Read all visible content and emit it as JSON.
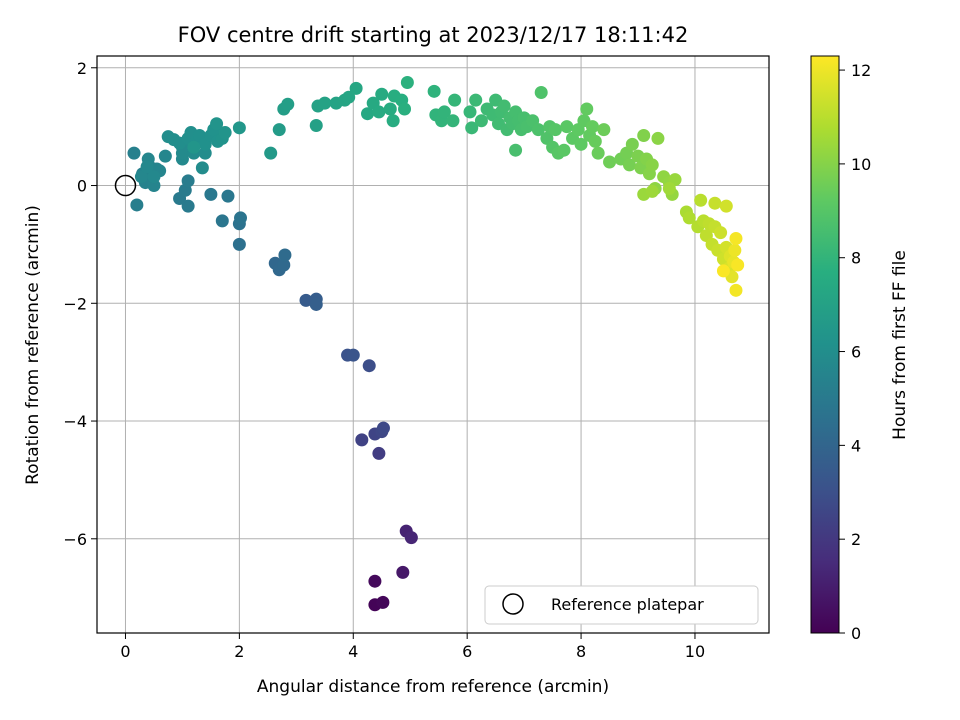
{
  "chart_data": {
    "type": "scatter",
    "title": "FOV centre drift starting at 2023/12/17 18:11:42",
    "xlabel": "Angular distance from reference (arcmin)",
    "ylabel": "Rotation from reference (arcmin)",
    "xlim": [
      -0.5,
      11.3
    ],
    "ylim": [
      -7.6,
      2.2
    ],
    "x_ticks": [
      0,
      2,
      4,
      6,
      8,
      10
    ],
    "y_ticks": [
      -6,
      -4,
      -2,
      0,
      2
    ],
    "grid": true,
    "legend_position": "lower-right",
    "colorbar": {
      "label": "Hours from first FF file",
      "range": [
        0,
        12.3
      ],
      "ticks": [
        0,
        2,
        4,
        6,
        8,
        10,
        12
      ],
      "colormap": "viridis"
    },
    "reference": {
      "label": "Reference platepar",
      "x": 0,
      "y": 0
    },
    "points": [
      {
        "x": 4.38,
        "y": -7.12,
        "t": 0.1
      },
      {
        "x": 4.52,
        "y": -7.08,
        "t": 0.2
      },
      {
        "x": 4.38,
        "y": -6.72,
        "t": 0.3
      },
      {
        "x": 4.87,
        "y": -6.57,
        "t": 0.8
      },
      {
        "x": 4.93,
        "y": -5.87,
        "t": 1.2
      },
      {
        "x": 5.02,
        "y": -5.98,
        "t": 1.3
      },
      {
        "x": 4.45,
        "y": -4.55,
        "t": 2.2
      },
      {
        "x": 4.15,
        "y": -4.32,
        "t": 2.4
      },
      {
        "x": 4.38,
        "y": -4.22,
        "t": 2.5
      },
      {
        "x": 4.5,
        "y": -4.18,
        "t": 2.6
      },
      {
        "x": 4.53,
        "y": -4.12,
        "t": 2.7
      },
      {
        "x": 4.28,
        "y": -3.06,
        "t": 2.9
      },
      {
        "x": 3.9,
        "y": -2.88,
        "t": 3.1
      },
      {
        "x": 4.0,
        "y": -2.88,
        "t": 3.2
      },
      {
        "x": 3.17,
        "y": -1.95,
        "t": 3.5
      },
      {
        "x": 3.35,
        "y": -1.93,
        "t": 3.6
      },
      {
        "x": 3.35,
        "y": -2.02,
        "t": 3.7
      },
      {
        "x": 2.63,
        "y": -1.32,
        "t": 4.1
      },
      {
        "x": 2.7,
        "y": -1.43,
        "t": 4.15
      },
      {
        "x": 2.78,
        "y": -1.35,
        "t": 4.2
      },
      {
        "x": 2.8,
        "y": -1.18,
        "t": 4.3
      },
      {
        "x": 2.0,
        "y": -1.0,
        "t": 4.5
      },
      {
        "x": 2.0,
        "y": -0.65,
        "t": 4.6
      },
      {
        "x": 2.02,
        "y": -0.55,
        "t": 4.7
      },
      {
        "x": 1.7,
        "y": -0.6,
        "t": 4.8
      },
      {
        "x": 1.8,
        "y": -0.18,
        "t": 4.85
      },
      {
        "x": 1.5,
        "y": -0.15,
        "t": 4.9
      },
      {
        "x": 1.1,
        "y": -0.35,
        "t": 5.0
      },
      {
        "x": 0.95,
        "y": -0.22,
        "t": 5.0
      },
      {
        "x": 1.05,
        "y": -0.08,
        "t": 5.05
      },
      {
        "x": 1.1,
        "y": 0.08,
        "t": 5.1
      },
      {
        "x": 0.2,
        "y": -0.33,
        "t": 5.2
      },
      {
        "x": 0.15,
        "y": 0.55,
        "t": 5.3
      },
      {
        "x": 0.3,
        "y": 0.2,
        "t": 5.3
      },
      {
        "x": 0.35,
        "y": 0.05,
        "t": 5.4
      },
      {
        "x": 0.42,
        "y": 0.1,
        "t": 5.4
      },
      {
        "x": 0.45,
        "y": 0.3,
        "t": 5.45
      },
      {
        "x": 0.5,
        "y": 0.0,
        "t": 5.5
      },
      {
        "x": 0.55,
        "y": 0.28,
        "t": 5.5
      },
      {
        "x": 0.6,
        "y": 0.25,
        "t": 5.55
      },
      {
        "x": 0.4,
        "y": 0.45,
        "t": 5.6
      },
      {
        "x": 0.7,
        "y": 0.5,
        "t": 5.6
      },
      {
        "x": 0.28,
        "y": 0.15,
        "t": 5.65
      },
      {
        "x": 0.5,
        "y": 0.15,
        "t": 5.7
      },
      {
        "x": 0.38,
        "y": 0.32,
        "t": 5.7
      },
      {
        "x": 1.0,
        "y": 0.45,
        "t": 5.75
      },
      {
        "x": 1.0,
        "y": 0.55,
        "t": 5.8
      },
      {
        "x": 1.0,
        "y": 0.65,
        "t": 5.8
      },
      {
        "x": 1.2,
        "y": 0.55,
        "t": 5.85
      },
      {
        "x": 1.35,
        "y": 0.3,
        "t": 5.9
      },
      {
        "x": 1.4,
        "y": 0.55,
        "t": 5.9
      },
      {
        "x": 0.75,
        "y": 0.83,
        "t": 5.95
      },
      {
        "x": 0.85,
        "y": 0.78,
        "t": 6.0
      },
      {
        "x": 0.95,
        "y": 0.72,
        "t": 6.0
      },
      {
        "x": 1.1,
        "y": 0.8,
        "t": 6.05
      },
      {
        "x": 1.15,
        "y": 0.9,
        "t": 6.05
      },
      {
        "x": 1.25,
        "y": 0.75,
        "t": 6.1
      },
      {
        "x": 1.3,
        "y": 0.85,
        "t": 6.1
      },
      {
        "x": 1.4,
        "y": 0.7,
        "t": 6.15
      },
      {
        "x": 1.5,
        "y": 0.85,
        "t": 6.15
      },
      {
        "x": 1.55,
        "y": 0.95,
        "t": 6.2
      },
      {
        "x": 1.62,
        "y": 0.75,
        "t": 6.2
      },
      {
        "x": 1.7,
        "y": 0.8,
        "t": 6.25
      },
      {
        "x": 1.75,
        "y": 0.9,
        "t": 6.3
      },
      {
        "x": 1.6,
        "y": 1.05,
        "t": 6.3
      },
      {
        "x": 1.2,
        "y": 0.65,
        "t": 6.35
      },
      {
        "x": 2.0,
        "y": 0.98,
        "t": 6.45
      },
      {
        "x": 2.55,
        "y": 0.55,
        "t": 6.6
      },
      {
        "x": 2.7,
        "y": 0.95,
        "t": 6.7
      },
      {
        "x": 2.78,
        "y": 1.3,
        "t": 6.8
      },
      {
        "x": 2.85,
        "y": 1.38,
        "t": 6.85
      },
      {
        "x": 3.35,
        "y": 1.02,
        "t": 6.95
      },
      {
        "x": 3.38,
        "y": 1.35,
        "t": 7.0
      },
      {
        "x": 3.5,
        "y": 1.4,
        "t": 7.05
      },
      {
        "x": 3.7,
        "y": 1.4,
        "t": 7.1
      },
      {
        "x": 3.85,
        "y": 1.45,
        "t": 7.15
      },
      {
        "x": 3.92,
        "y": 1.5,
        "t": 7.2
      },
      {
        "x": 4.05,
        "y": 1.65,
        "t": 7.25
      },
      {
        "x": 4.25,
        "y": 1.22,
        "t": 7.35
      },
      {
        "x": 4.35,
        "y": 1.4,
        "t": 7.4
      },
      {
        "x": 4.45,
        "y": 1.25,
        "t": 7.45
      },
      {
        "x": 4.5,
        "y": 1.55,
        "t": 7.5
      },
      {
        "x": 4.65,
        "y": 1.3,
        "t": 7.55
      },
      {
        "x": 4.7,
        "y": 1.1,
        "t": 7.6
      },
      {
        "x": 4.72,
        "y": 1.52,
        "t": 7.65
      },
      {
        "x": 4.85,
        "y": 1.45,
        "t": 7.7
      },
      {
        "x": 4.9,
        "y": 1.3,
        "t": 7.75
      },
      {
        "x": 4.95,
        "y": 1.75,
        "t": 7.8
      },
      {
        "x": 5.42,
        "y": 1.6,
        "t": 7.9
      },
      {
        "x": 5.45,
        "y": 1.2,
        "t": 7.95
      },
      {
        "x": 5.55,
        "y": 1.1,
        "t": 8.0
      },
      {
        "x": 5.6,
        "y": 1.25,
        "t": 8.0
      },
      {
        "x": 5.75,
        "y": 1.1,
        "t": 8.05
      },
      {
        "x": 5.78,
        "y": 1.45,
        "t": 8.1
      },
      {
        "x": 6.05,
        "y": 1.25,
        "t": 8.15
      },
      {
        "x": 6.08,
        "y": 0.98,
        "t": 8.2
      },
      {
        "x": 6.15,
        "y": 1.45,
        "t": 8.25
      },
      {
        "x": 6.25,
        "y": 1.1,
        "t": 8.3
      },
      {
        "x": 6.35,
        "y": 1.3,
        "t": 8.3
      },
      {
        "x": 6.45,
        "y": 1.2,
        "t": 8.35
      },
      {
        "x": 6.5,
        "y": 1.45,
        "t": 8.35
      },
      {
        "x": 6.55,
        "y": 1.05,
        "t": 8.4
      },
      {
        "x": 6.6,
        "y": 1.25,
        "t": 8.4
      },
      {
        "x": 6.65,
        "y": 1.35,
        "t": 8.45
      },
      {
        "x": 6.7,
        "y": 0.95,
        "t": 8.45
      },
      {
        "x": 6.75,
        "y": 1.15,
        "t": 8.5
      },
      {
        "x": 6.8,
        "y": 1.05,
        "t": 8.5
      },
      {
        "x": 6.85,
        "y": 1.25,
        "t": 8.55
      },
      {
        "x": 6.9,
        "y": 1.1,
        "t": 8.55
      },
      {
        "x": 6.95,
        "y": 0.95,
        "t": 8.6
      },
      {
        "x": 7.0,
        "y": 1.15,
        "t": 8.6
      },
      {
        "x": 6.85,
        "y": 0.6,
        "t": 8.62
      },
      {
        "x": 7.05,
        "y": 1.0,
        "t": 8.65
      },
      {
        "x": 7.15,
        "y": 1.1,
        "t": 8.7
      },
      {
        "x": 7.25,
        "y": 0.95,
        "t": 8.75
      },
      {
        "x": 7.3,
        "y": 1.58,
        "t": 8.8
      },
      {
        "x": 7.4,
        "y": 0.8,
        "t": 8.85
      },
      {
        "x": 7.45,
        "y": 1.0,
        "t": 8.9
      },
      {
        "x": 7.5,
        "y": 0.65,
        "t": 8.95
      },
      {
        "x": 7.55,
        "y": 0.95,
        "t": 9.0
      },
      {
        "x": 7.6,
        "y": 0.55,
        "t": 9.05
      },
      {
        "x": 7.75,
        "y": 1.0,
        "t": 9.1
      },
      {
        "x": 7.7,
        "y": 0.6,
        "t": 9.1
      },
      {
        "x": 7.85,
        "y": 0.8,
        "t": 9.15
      },
      {
        "x": 7.95,
        "y": 0.95,
        "t": 9.2
      },
      {
        "x": 8.0,
        "y": 0.7,
        "t": 9.2
      },
      {
        "x": 8.05,
        "y": 1.1,
        "t": 9.25
      },
      {
        "x": 8.1,
        "y": 1.3,
        "t": 9.3
      },
      {
        "x": 8.15,
        "y": 0.85,
        "t": 9.3
      },
      {
        "x": 8.2,
        "y": 1.0,
        "t": 9.35
      },
      {
        "x": 8.25,
        "y": 0.75,
        "t": 9.4
      },
      {
        "x": 8.3,
        "y": 0.55,
        "t": 9.45
      },
      {
        "x": 8.4,
        "y": 0.95,
        "t": 9.5
      },
      {
        "x": 8.5,
        "y": 0.4,
        "t": 9.55
      },
      {
        "x": 8.7,
        "y": 0.45,
        "t": 9.6
      },
      {
        "x": 8.8,
        "y": 0.55,
        "t": 9.65
      },
      {
        "x": 8.85,
        "y": 0.35,
        "t": 9.7
      },
      {
        "x": 8.9,
        "y": 0.7,
        "t": 9.75
      },
      {
        "x": 9.0,
        "y": 0.5,
        "t": 9.8
      },
      {
        "x": 9.05,
        "y": 0.3,
        "t": 9.85
      },
      {
        "x": 9.1,
        "y": 0.85,
        "t": 9.9
      },
      {
        "x": 9.15,
        "y": 0.45,
        "t": 9.95
      },
      {
        "x": 9.2,
        "y": 0.2,
        "t": 10.0
      },
      {
        "x": 9.25,
        "y": 0.35,
        "t": 10.05
      },
      {
        "x": 9.35,
        "y": 0.8,
        "t": 10.1
      },
      {
        "x": 9.3,
        "y": -0.05,
        "t": 10.15
      },
      {
        "x": 9.45,
        "y": 0.15,
        "t": 10.2
      },
      {
        "x": 9.55,
        "y": 0.05,
        "t": 10.25
      },
      {
        "x": 9.6,
        "y": -0.15,
        "t": 10.3
      },
      {
        "x": 9.65,
        "y": 0.1,
        "t": 10.35
      },
      {
        "x": 9.1,
        "y": -0.15,
        "t": 10.4
      },
      {
        "x": 9.25,
        "y": -0.1,
        "t": 10.45
      },
      {
        "x": 9.55,
        "y": -0.05,
        "t": 10.5
      },
      {
        "x": 9.85,
        "y": -0.45,
        "t": 10.7
      },
      {
        "x": 9.9,
        "y": -0.55,
        "t": 10.8
      },
      {
        "x": 10.05,
        "y": -0.7,
        "t": 10.9
      },
      {
        "x": 10.1,
        "y": -0.25,
        "t": 11.0
      },
      {
        "x": 10.15,
        "y": -0.6,
        "t": 11.0
      },
      {
        "x": 10.2,
        "y": -0.85,
        "t": 11.1
      },
      {
        "x": 10.25,
        "y": -0.65,
        "t": 11.1
      },
      {
        "x": 10.3,
        "y": -1.0,
        "t": 11.2
      },
      {
        "x": 10.35,
        "y": -0.7,
        "t": 11.2
      },
      {
        "x": 10.35,
        "y": -0.3,
        "t": 11.25
      },
      {
        "x": 10.4,
        "y": -1.1,
        "t": 11.3
      },
      {
        "x": 10.45,
        "y": -0.8,
        "t": 11.35
      },
      {
        "x": 10.5,
        "y": -1.25,
        "t": 11.4
      },
      {
        "x": 10.55,
        "y": -0.35,
        "t": 11.45
      },
      {
        "x": 10.55,
        "y": -1.05,
        "t": 11.5
      },
      {
        "x": 10.6,
        "y": -1.4,
        "t": 11.6
      },
      {
        "x": 10.62,
        "y": -1.2,
        "t": 11.7
      },
      {
        "x": 10.65,
        "y": -1.55,
        "t": 11.8
      },
      {
        "x": 10.68,
        "y": -1.3,
        "t": 11.9
      },
      {
        "x": 10.7,
        "y": -1.1,
        "t": 12.0
      },
      {
        "x": 10.72,
        "y": -1.78,
        "t": 12.1
      },
      {
        "x": 10.72,
        "y": -0.9,
        "t": 12.15
      },
      {
        "x": 10.75,
        "y": -1.35,
        "t": 12.2
      },
      {
        "x": 10.5,
        "y": -1.45,
        "t": 12.25
      }
    ]
  }
}
